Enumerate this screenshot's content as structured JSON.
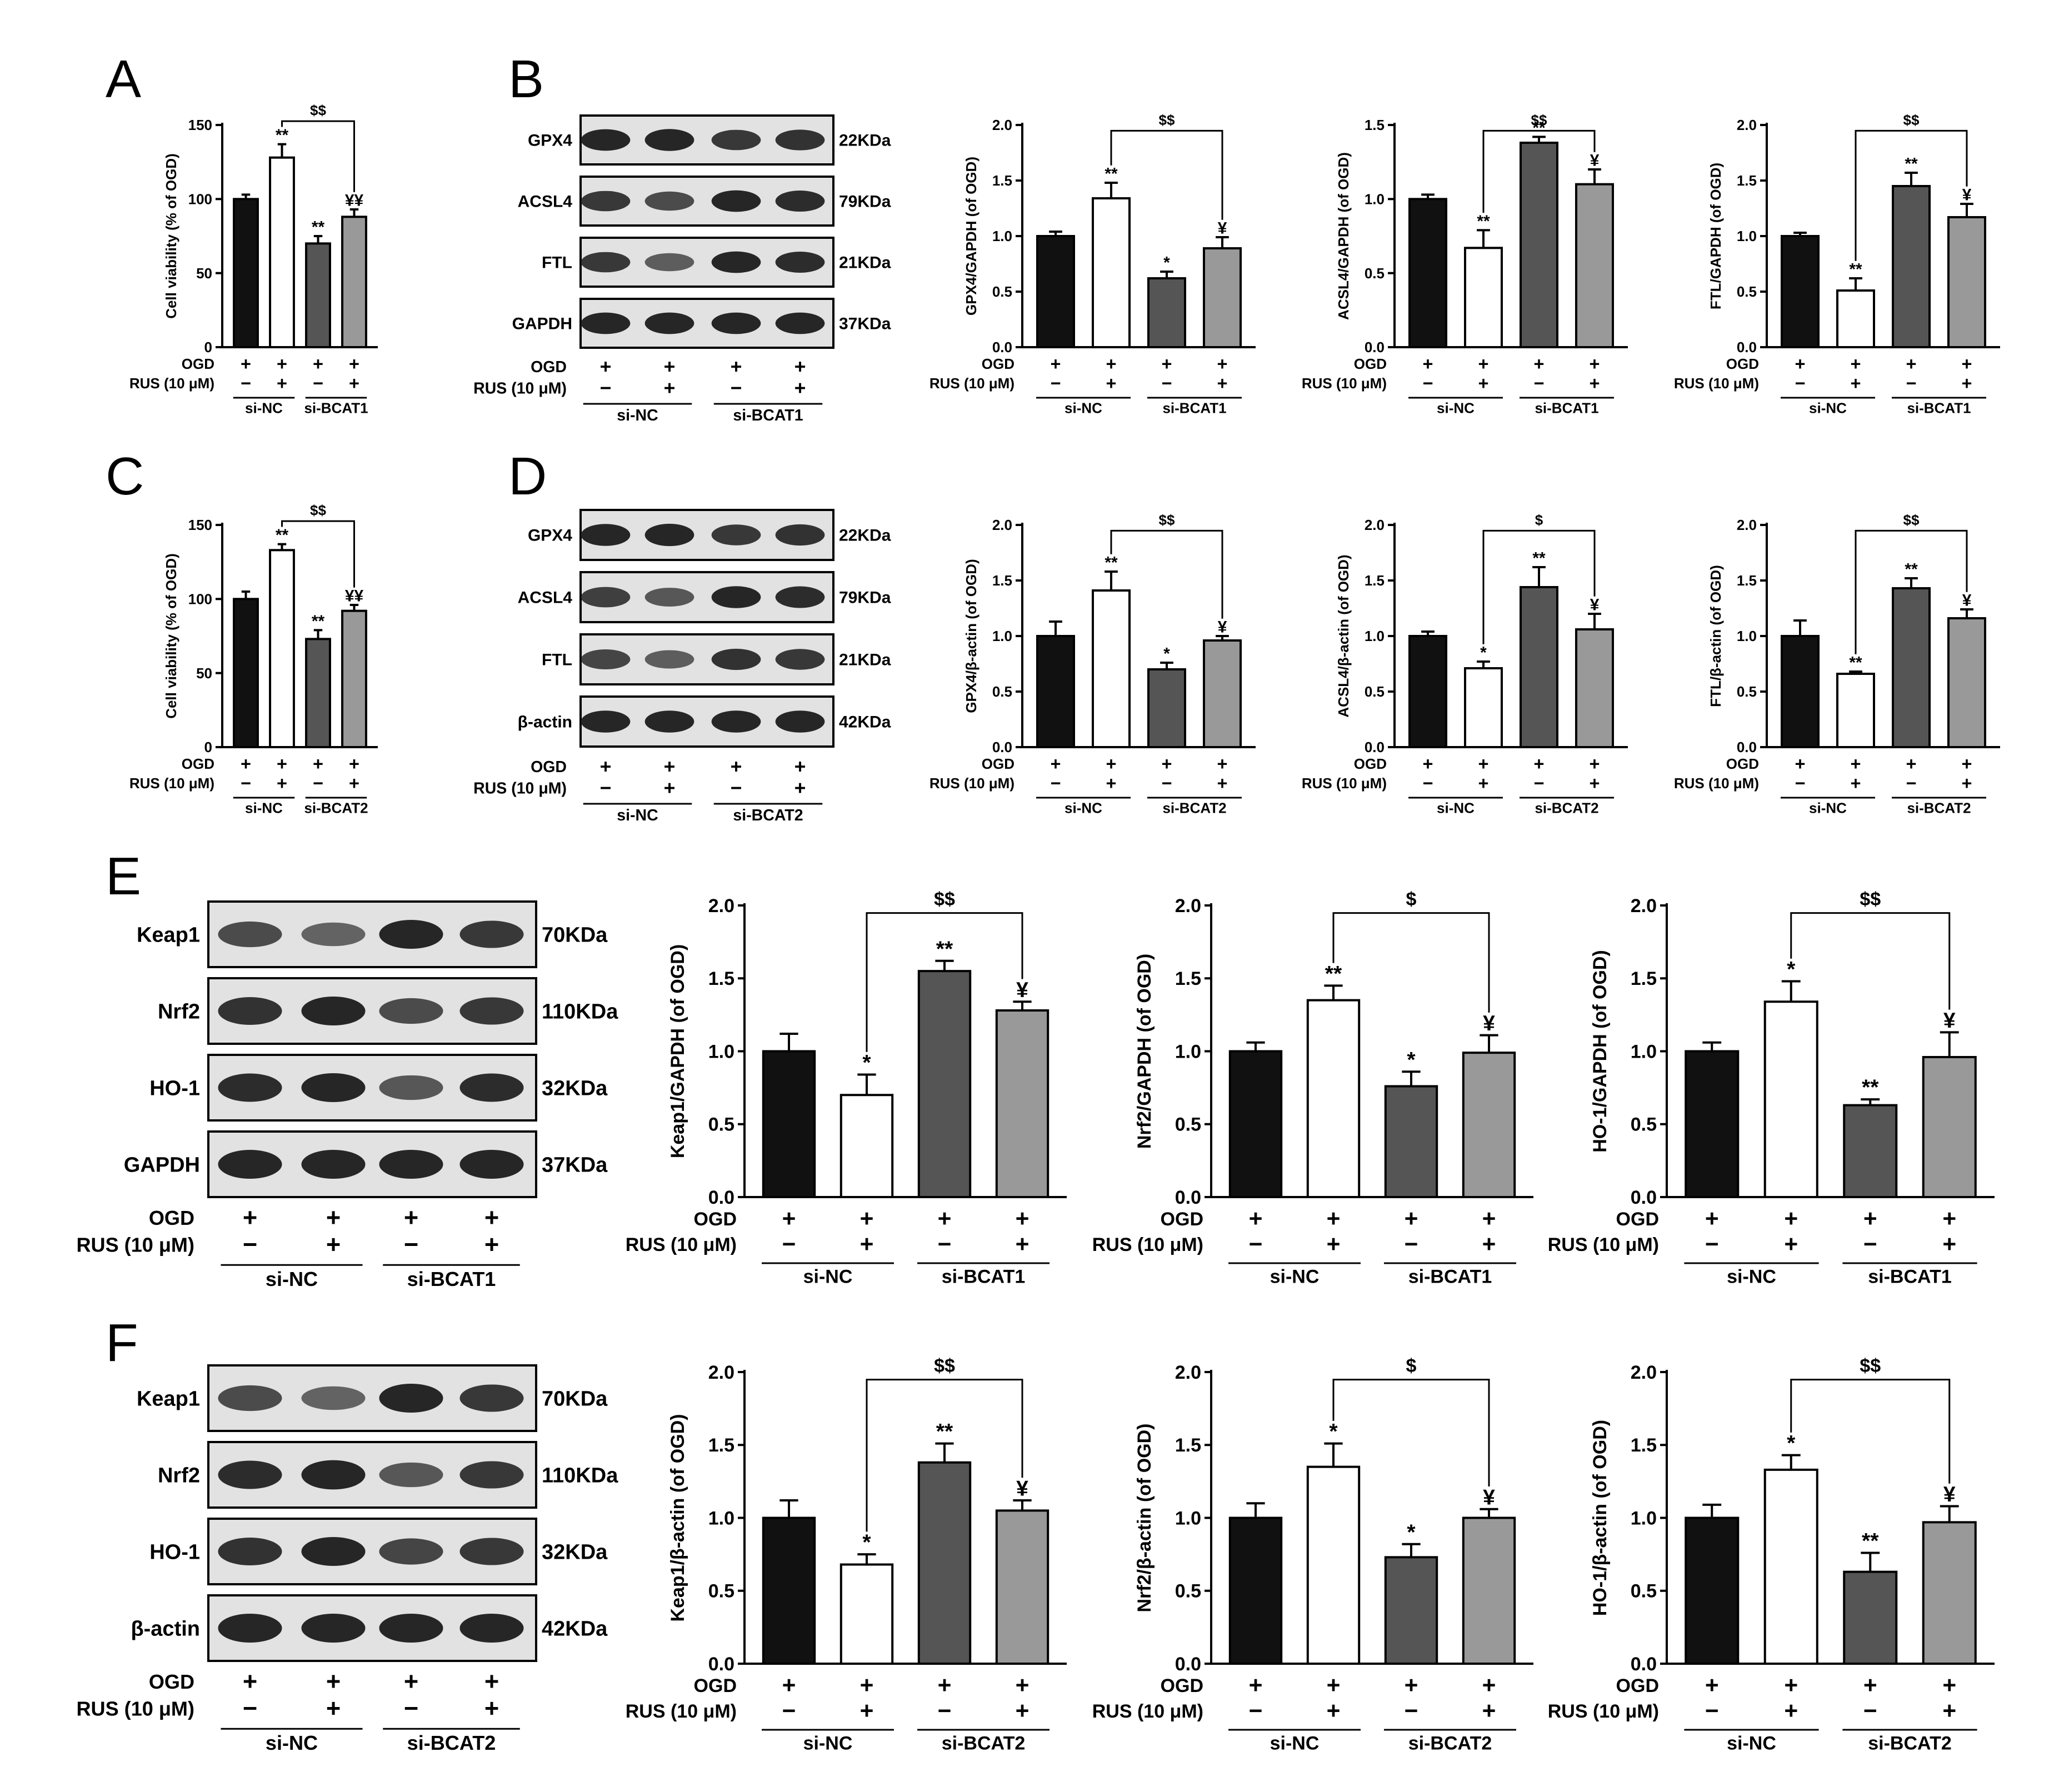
{
  "figure": {
    "panel_letters": [
      "A",
      "B",
      "C",
      "D",
      "E",
      "F"
    ],
    "condition_labels": {
      "ogd": "OGD",
      "rus": "RUS (10 μM)"
    },
    "ogd_marks": [
      "+",
      "+",
      "+",
      "+"
    ],
    "rus_marks": [
      "−",
      "+",
      "−",
      "+"
    ],
    "bar_colors": [
      "#111111",
      "#ffffff",
      "#555555",
      "#999999"
    ]
  },
  "blots": [
    {
      "id": "B",
      "groups": [
        "si-NC",
        "si-BCAT1"
      ],
      "rows": [
        {
          "label": "GPX4",
          "kda": "22KDa",
          "intensity": [
            1.0,
            1.05,
            0.85,
            0.9
          ]
        },
        {
          "label": "ACSL4",
          "kda": "79KDa",
          "intensity": [
            0.85,
            0.7,
            1.0,
            0.95
          ]
        },
        {
          "label": "FTL",
          "kda": "21KDa",
          "intensity": [
            0.85,
            0.55,
            1.0,
            0.95
          ]
        },
        {
          "label": "GAPDH",
          "kda": "37KDa",
          "intensity": [
            1.0,
            1.0,
            1.0,
            1.0
          ]
        }
      ]
    },
    {
      "id": "D",
      "groups": [
        "si-NC",
        "si-BCAT2"
      ],
      "rows": [
        {
          "label": "GPX4",
          "kda": "22KDa",
          "intensity": [
            1.0,
            1.05,
            0.85,
            0.9
          ]
        },
        {
          "label": "ACSL4",
          "kda": "79KDa",
          "intensity": [
            0.8,
            0.6,
            1.0,
            0.95
          ]
        },
        {
          "label": "FTL",
          "kda": "21KDa",
          "intensity": [
            0.75,
            0.55,
            0.9,
            0.85
          ]
        },
        {
          "label": "β-actin",
          "kda": "42KDa",
          "intensity": [
            1.0,
            1.0,
            1.0,
            1.0
          ]
        }
      ]
    },
    {
      "id": "E",
      "groups": [
        "si-NC",
        "si-BCAT1"
      ],
      "rows": [
        {
          "label": "Keap1",
          "kda": "70KDa",
          "intensity": [
            0.7,
            0.5,
            1.0,
            0.85
          ]
        },
        {
          "label": "Nrf2",
          "kda": "110KDa",
          "intensity": [
            0.9,
            1.0,
            0.7,
            0.85
          ]
        },
        {
          "label": "HO-1",
          "kda": "32KDa",
          "intensity": [
            0.95,
            1.0,
            0.6,
            0.95
          ]
        },
        {
          "label": "GAPDH",
          "kda": "37KDa",
          "intensity": [
            1.0,
            1.0,
            1.0,
            1.0
          ]
        }
      ]
    },
    {
      "id": "F",
      "groups": [
        "si-NC",
        "si-BCAT2"
      ],
      "rows": [
        {
          "label": "Keap1",
          "kda": "70KDa",
          "intensity": [
            0.7,
            0.5,
            1.0,
            0.85
          ]
        },
        {
          "label": "Nrf2",
          "kda": "110KDa",
          "intensity": [
            0.95,
            1.05,
            0.6,
            0.85
          ]
        },
        {
          "label": "HO-1",
          "kda": "32KDa",
          "intensity": [
            0.9,
            1.0,
            0.75,
            0.85
          ]
        },
        {
          "label": "β-actin",
          "kda": "42KDa",
          "intensity": [
            1.0,
            1.0,
            1.0,
            1.0
          ]
        }
      ]
    }
  ],
  "chart_data": [
    {
      "id": "A-viability",
      "type": "bar",
      "ylabel": "Cell viability (% of OGD)",
      "ylim": [
        0,
        150
      ],
      "yticks": [
        0,
        50,
        100,
        150
      ],
      "values": [
        100,
        128,
        70,
        88
      ],
      "errors": [
        3,
        9,
        5,
        5
      ],
      "sig": [
        "",
        "**",
        "**",
        "¥¥"
      ],
      "bracket": {
        "from": 1,
        "to": 3,
        "label": "$$"
      },
      "groups": [
        "si-NC",
        "si-BCAT1"
      ]
    },
    {
      "id": "B-gpx4",
      "type": "bar",
      "ylabel": "GPX4/GAPDH (of OGD)",
      "ylim": [
        0,
        2
      ],
      "yticks": [
        0.0,
        0.5,
        1.0,
        1.5,
        2.0
      ],
      "values": [
        1.0,
        1.34,
        0.62,
        0.89
      ],
      "errors": [
        0.04,
        0.14,
        0.06,
        0.1
      ],
      "sig": [
        "",
        "**",
        "*",
        "¥"
      ],
      "bracket": {
        "from": 1,
        "to": 3,
        "label": "$$"
      },
      "groups": [
        "si-NC",
        "si-BCAT1"
      ]
    },
    {
      "id": "B-acsl4",
      "type": "bar",
      "ylabel": "ACSL4/GAPDH (of OGD)",
      "ylim": [
        0,
        1.5
      ],
      "yticks": [
        0.0,
        0.5,
        1.0,
        1.5
      ],
      "values": [
        1.0,
        0.67,
        1.38,
        1.1
      ],
      "errors": [
        0.03,
        0.12,
        0.04,
        0.1
      ],
      "sig": [
        "",
        "**",
        "**",
        "¥"
      ],
      "bracket": {
        "from": 1,
        "to": 3,
        "label": "$$"
      },
      "groups": [
        "si-NC",
        "si-BCAT1"
      ]
    },
    {
      "id": "B-ftl",
      "type": "bar",
      "ylabel": "FTL/GAPDH (of OGD)",
      "ylim": [
        0,
        2
      ],
      "yticks": [
        0.0,
        0.5,
        1.0,
        1.5,
        2.0
      ],
      "values": [
        1.0,
        0.51,
        1.45,
        1.17
      ],
      "errors": [
        0.03,
        0.11,
        0.12,
        0.12
      ],
      "sig": [
        "",
        "**",
        "**",
        "¥"
      ],
      "bracket": {
        "from": 1,
        "to": 3,
        "label": "$$"
      },
      "groups": [
        "si-NC",
        "si-BCAT1"
      ]
    },
    {
      "id": "C-viability",
      "type": "bar",
      "ylabel": "Cell viability (% of OGD)",
      "ylim": [
        0,
        150
      ],
      "yticks": [
        0,
        50,
        100,
        150
      ],
      "values": [
        100,
        133,
        73,
        92
      ],
      "errors": [
        5,
        4,
        6,
        4
      ],
      "sig": [
        "",
        "**",
        "**",
        "¥¥"
      ],
      "bracket": {
        "from": 1,
        "to": 3,
        "label": "$$"
      },
      "groups": [
        "si-NC",
        "si-BCAT2"
      ]
    },
    {
      "id": "D-gpx4",
      "type": "bar",
      "ylabel": "GPX4/β-actin (of OGD)",
      "ylim": [
        0,
        2
      ],
      "yticks": [
        0.0,
        0.5,
        1.0,
        1.5,
        2.0
      ],
      "values": [
        1.0,
        1.41,
        0.7,
        0.96
      ],
      "errors": [
        0.13,
        0.17,
        0.06,
        0.04
      ],
      "sig": [
        "",
        "**",
        "*",
        "¥"
      ],
      "bracket": {
        "from": 1,
        "to": 3,
        "label": "$$"
      },
      "groups": [
        "si-NC",
        "si-BCAT2"
      ]
    },
    {
      "id": "D-acsl4",
      "type": "bar",
      "ylabel": "ACSL4/β-actin (of OGD)",
      "ylim": [
        0,
        2
      ],
      "yticks": [
        0.0,
        0.5,
        1.0,
        1.5,
        2.0
      ],
      "values": [
        1.0,
        0.71,
        1.44,
        1.06
      ],
      "errors": [
        0.04,
        0.06,
        0.18,
        0.14
      ],
      "sig": [
        "",
        "*",
        "**",
        "¥"
      ],
      "bracket": {
        "from": 1,
        "to": 3,
        "label": "$"
      },
      "groups": [
        "si-NC",
        "si-BCAT2"
      ]
    },
    {
      "id": "D-ftl",
      "type": "bar",
      "ylabel": "FTL/β-actin (of OGD)",
      "ylim": [
        0,
        2
      ],
      "yticks": [
        0.0,
        0.5,
        1.0,
        1.5,
        2.0
      ],
      "values": [
        1.0,
        0.66,
        1.43,
        1.16
      ],
      "errors": [
        0.14,
        0.02,
        0.09,
        0.08
      ],
      "sig": [
        "",
        "**",
        "**",
        "¥"
      ],
      "bracket": {
        "from": 1,
        "to": 3,
        "label": "$$"
      },
      "groups": [
        "si-NC",
        "si-BCAT2"
      ]
    },
    {
      "id": "E-keap1",
      "type": "bar",
      "ylabel": "Keap1/GAPDH (of OGD)",
      "ylim": [
        0,
        2
      ],
      "yticks": [
        0.0,
        0.5,
        1.0,
        1.5,
        2.0
      ],
      "values": [
        1.0,
        0.7,
        1.55,
        1.28
      ],
      "errors": [
        0.12,
        0.14,
        0.07,
        0.06
      ],
      "sig": [
        "",
        "*",
        "**",
        "¥"
      ],
      "bracket": {
        "from": 1,
        "to": 3,
        "label": "$$"
      },
      "groups": [
        "si-NC",
        "si-BCAT1"
      ]
    },
    {
      "id": "E-nrf2",
      "type": "bar",
      "ylabel": "Nrf2/GAPDH (of OGD)",
      "ylim": [
        0,
        2
      ],
      "yticks": [
        0.0,
        0.5,
        1.0,
        1.5,
        2.0
      ],
      "values": [
        1.0,
        1.35,
        0.76,
        0.99
      ],
      "errors": [
        0.06,
        0.1,
        0.1,
        0.12
      ],
      "sig": [
        "",
        "**",
        "*",
        "¥"
      ],
      "bracket": {
        "from": 1,
        "to": 3,
        "label": "$"
      },
      "groups": [
        "si-NC",
        "si-BCAT1"
      ]
    },
    {
      "id": "E-ho1",
      "type": "bar",
      "ylabel": "HO-1/GAPDH (of OGD)",
      "ylim": [
        0,
        2
      ],
      "yticks": [
        0.0,
        0.5,
        1.0,
        1.5,
        2.0
      ],
      "values": [
        1.0,
        1.34,
        0.63,
        0.96
      ],
      "errors": [
        0.06,
        0.14,
        0.04,
        0.17
      ],
      "sig": [
        "",
        "*",
        "**",
        "¥"
      ],
      "bracket": {
        "from": 1,
        "to": 3,
        "label": "$$"
      },
      "groups": [
        "si-NC",
        "si-BCAT1"
      ]
    },
    {
      "id": "F-keap1",
      "type": "bar",
      "ylabel": "Keap1/β-actin (of OGD)",
      "ylim": [
        0,
        2
      ],
      "yticks": [
        0.0,
        0.5,
        1.0,
        1.5,
        2.0
      ],
      "values": [
        1.0,
        0.68,
        1.38,
        1.05
      ],
      "errors": [
        0.12,
        0.07,
        0.13,
        0.07
      ],
      "sig": [
        "",
        "*",
        "**",
        "¥"
      ],
      "bracket": {
        "from": 1,
        "to": 3,
        "label": "$$"
      },
      "groups": [
        "si-NC",
        "si-BCAT2"
      ]
    },
    {
      "id": "F-nrf2",
      "type": "bar",
      "ylabel": "Nrf2/β-actin (of OGD)",
      "ylim": [
        0,
        2
      ],
      "yticks": [
        0.0,
        0.5,
        1.0,
        1.5,
        2.0
      ],
      "values": [
        1.0,
        1.35,
        0.73,
        1.0
      ],
      "errors": [
        0.1,
        0.16,
        0.09,
        0.06
      ],
      "sig": [
        "",
        "*",
        "*",
        "¥"
      ],
      "bracket": {
        "from": 1,
        "to": 3,
        "label": "$"
      },
      "groups": [
        "si-NC",
        "si-BCAT2"
      ]
    },
    {
      "id": "F-ho1",
      "type": "bar",
      "ylabel": "HO-1/β-actin (of OGD)",
      "ylim": [
        0,
        2
      ],
      "yticks": [
        0.0,
        0.5,
        1.0,
        1.5,
        2.0
      ],
      "values": [
        1.0,
        1.33,
        0.63,
        0.97
      ],
      "errors": [
        0.09,
        0.1,
        0.13,
        0.11
      ],
      "sig": [
        "",
        "*",
        "**",
        "¥"
      ],
      "bracket": {
        "from": 1,
        "to": 3,
        "label": "$$"
      },
      "groups": [
        "si-NC",
        "si-BCAT2"
      ]
    }
  ]
}
